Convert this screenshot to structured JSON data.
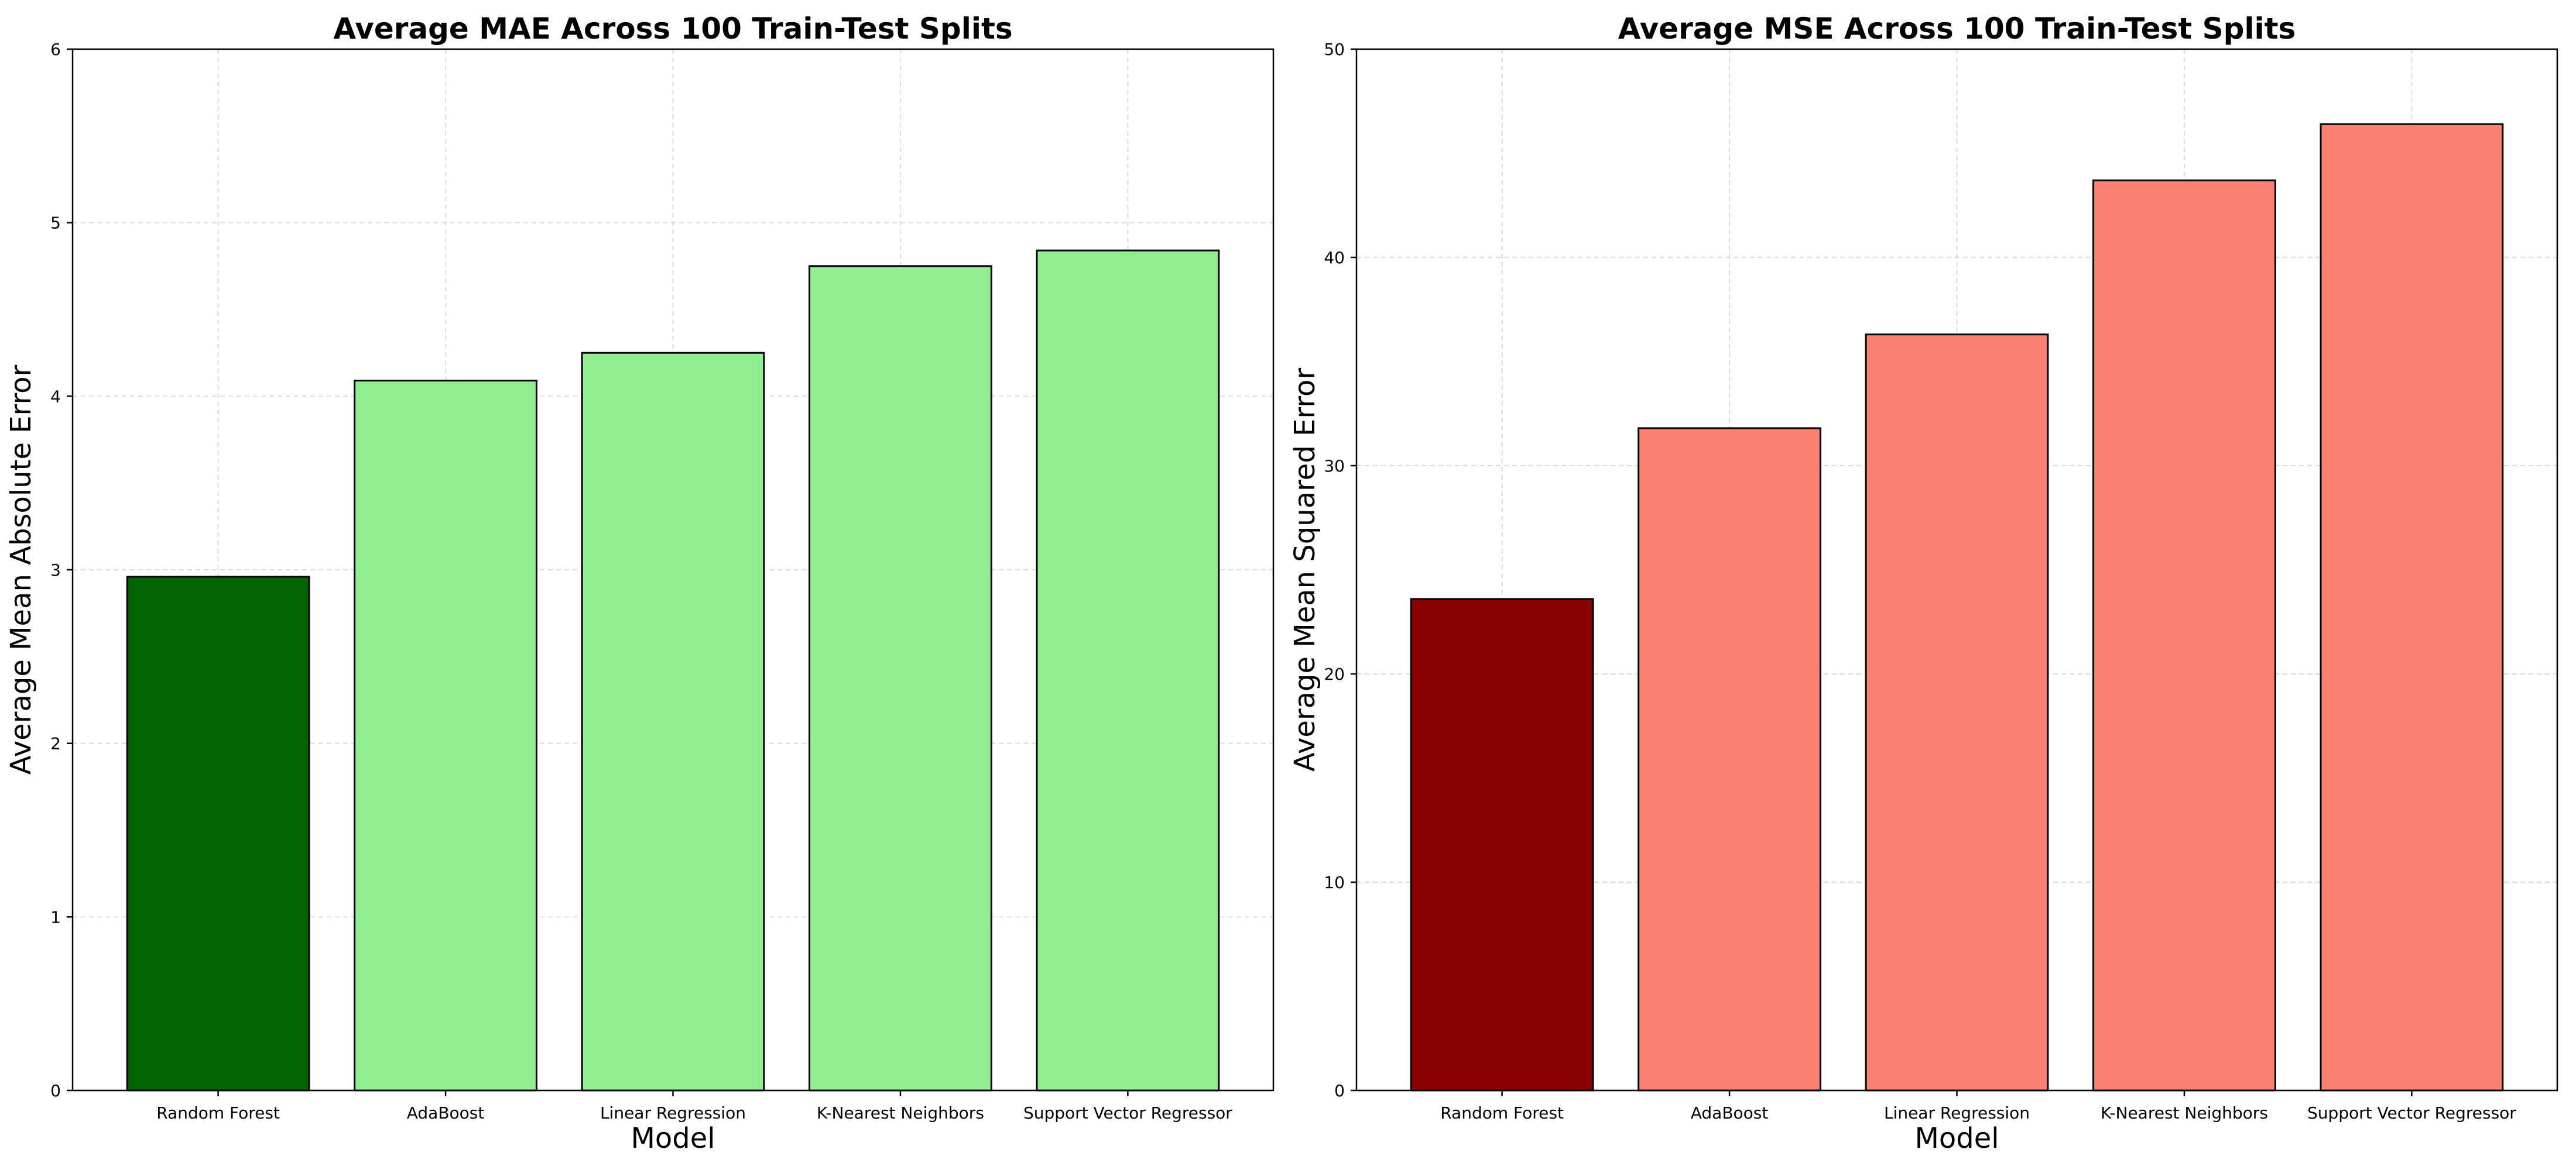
{
  "chart_data": [
    {
      "type": "bar",
      "title": "Average MAE Across 100 Train-Test Splits",
      "xlabel": "Model",
      "ylabel": "Average Mean Absolute Error",
      "categories": [
        "Random Forest",
        "AdaBoost",
        "Linear Regression",
        "K-Nearest Neighbors",
        "Support Vector Regressor"
      ],
      "values": [
        2.96,
        4.09,
        4.25,
        4.75,
        4.84
      ],
      "bar_colors": [
        "#006400",
        "#90EE90",
        "#90EE90",
        "#90EE90",
        "#90EE90"
      ],
      "ylim": [
        0,
        6
      ],
      "yticks": [
        0,
        1,
        2,
        3,
        4,
        5,
        6
      ],
      "grid": true
    },
    {
      "type": "bar",
      "title": "Average MSE Across 100 Train-Test Splits",
      "xlabel": "Model",
      "ylabel": "Average Mean Squared Error",
      "categories": [
        "Random Forest",
        "AdaBoost",
        "Linear Regression",
        "K-Nearest Neighbors",
        "Support Vector Regressor"
      ],
      "values": [
        23.6,
        31.8,
        36.3,
        43.7,
        46.4
      ],
      "bar_colors": [
        "#8B0000",
        "#FA8072",
        "#FA8072",
        "#FA8072",
        "#FA8072"
      ],
      "ylim": [
        0,
        50
      ],
      "yticks": [
        0,
        10,
        20,
        30,
        40,
        50
      ],
      "grid": true
    }
  ]
}
